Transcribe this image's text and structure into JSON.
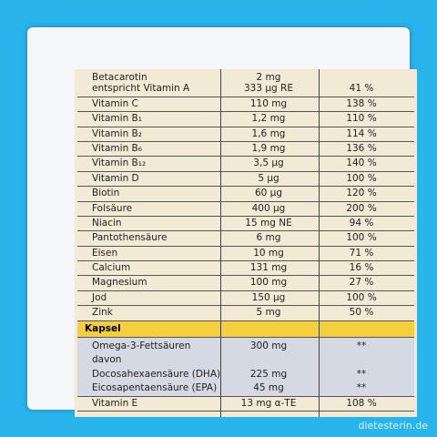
{
  "table": {
    "rows": [
      {
        "name": "Betacarotin",
        "amount": "2 mg"
      },
      {
        "name": "entspricht Vitamin A",
        "amount": "333 µg RE",
        "percent": "41 %"
      },
      {
        "name": "Vitamin C",
        "amount": "110 mg",
        "percent": "138 %"
      },
      {
        "name": "Vitamin B₁",
        "amount": "1,2 mg",
        "percent": "110 %"
      },
      {
        "name": "Vitamin B₂",
        "amount": "1,6 mg",
        "percent": "114 %"
      },
      {
        "name": "Vitamin B₆",
        "amount": "1,9 mg",
        "percent": "136 %"
      },
      {
        "name": "Vitamin B₁₂",
        "amount": "3,5 µg",
        "percent": "140 %"
      },
      {
        "name": "Vitamin D",
        "amount": "5 µg",
        "percent": "100 %"
      },
      {
        "name": "Biotin",
        "amount": "60 µg",
        "percent": "120 %"
      },
      {
        "name": "Folsäure",
        "amount": "400 µg",
        "percent": "200 %"
      },
      {
        "name": "Niacin",
        "amount": "15 mg NE",
        "percent": "94 %"
      },
      {
        "name": "Pantothensäure",
        "amount": "6 mg",
        "percent": "100 %"
      },
      {
        "name": "Eisen",
        "amount": "10 mg",
        "percent": "71 %"
      },
      {
        "name": "Calcium",
        "amount": "131 mg",
        "percent": "16 %"
      },
      {
        "name": "Magnesium",
        "amount": "100 mg",
        "percent": "27 %"
      },
      {
        "name": "Jod",
        "amount": "150 µg",
        "percent": "100 %"
      },
      {
        "name": "Zink",
        "amount": "5 mg",
        "percent": "50 %"
      }
    ],
    "section": "Kapsel",
    "capsule_rows": [
      {
        "name": "Omega-3-Fettsäuren",
        "amount": "300 mg",
        "percent": "**"
      },
      {
        "name": "davon"
      },
      {
        "name": "Docosahexaensäure (DHA)",
        "amount": "225 mg",
        "percent": "**"
      },
      {
        "name": "Eicosapentaensäure (EPA)",
        "amount": "45 mg",
        "percent": "**"
      }
    ],
    "footer_row": {
      "name": "Vitamin E",
      "amount": "13 mg α-TE",
      "percent": "108 %"
    }
  },
  "watermark": "dietesterin.de"
}
